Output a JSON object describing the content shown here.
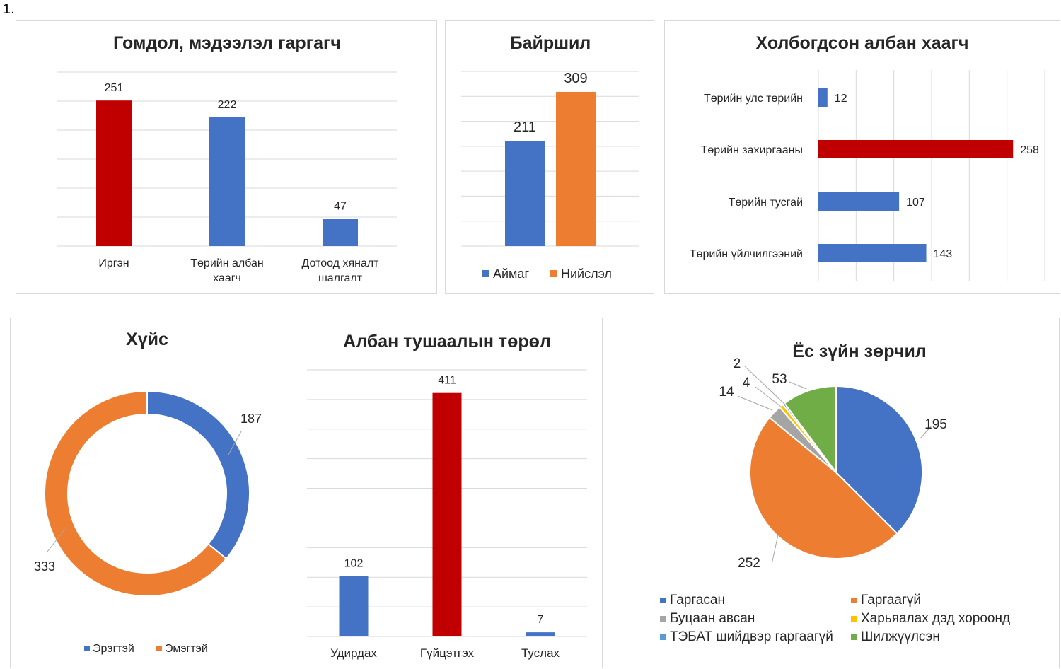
{
  "figure_number": "1.",
  "colors": {
    "blue": "#4472c4",
    "orange": "#ed7d31",
    "red": "#c00000",
    "gray": "#a5a5a5",
    "yellow": "#ffc000",
    "lightblue": "#5b9bd5",
    "green": "#70ad47",
    "grid": "#d9d9d9",
    "text": "#262626"
  },
  "chart_data": [
    {
      "id": "complainant",
      "type": "bar",
      "title": "Гомдол, мэдээлэл гаргагч",
      "categories": [
        [
          "Иргэн"
        ],
        [
          "Төрийн албан",
          "хаагч"
        ],
        [
          "Дотоод хяналт",
          "шалгалт"
        ]
      ],
      "values": [
        251,
        222,
        47
      ],
      "bar_colors": [
        "red",
        "blue",
        "blue"
      ],
      "ylim": [
        0,
        300
      ],
      "grid": true
    },
    {
      "id": "location",
      "type": "bar",
      "title": "Байршил",
      "series": [
        {
          "name": "Аймаг",
          "values": [
            211
          ],
          "color": "blue"
        },
        {
          "name": "Нийслэл",
          "values": [
            309
          ],
          "color": "orange"
        }
      ],
      "ylim": [
        0,
        350
      ],
      "grid": true,
      "legend": "bottom"
    },
    {
      "id": "officer",
      "type": "barh",
      "title": "Холбогдсон албан хаагч",
      "categories": [
        "Төрийн улс төрийн",
        "Төрийн захиргааны",
        "Төрийн тусгай",
        "Төрийн үйлчилгээний"
      ],
      "values": [
        12,
        258,
        107,
        143
      ],
      "bar_colors": [
        "blue",
        "red",
        "blue",
        "blue"
      ],
      "xlim": [
        0,
        300
      ],
      "grid": true
    },
    {
      "id": "gender",
      "type": "donut",
      "title": "Хүйс",
      "labels": [
        "Эрэгтэй",
        "Эмэгтэй"
      ],
      "values": [
        187,
        333
      ],
      "slice_colors": [
        "blue",
        "orange"
      ],
      "legend": "bottom"
    },
    {
      "id": "position",
      "type": "bar",
      "title": "Албан тушаалын төрөл",
      "categories": [
        [
          "Удирдах"
        ],
        [
          "Гүйцэтгэх"
        ],
        [
          "Туслах"
        ]
      ],
      "values": [
        102,
        411,
        7
      ],
      "bar_colors": [
        "blue",
        "red",
        "blue"
      ],
      "ylim": [
        0,
        450
      ],
      "grid": true
    },
    {
      "id": "ethics",
      "type": "pie",
      "title": "Ёс зүйн зөрчил",
      "labels": [
        "Гаргасан",
        "Гаргаагүй",
        "Буцаан авсан",
        "Харьяалах дэд хороонд",
        "ТЭБАТ шийдвэр гаргаагүй",
        "Шилжүүлсэн"
      ],
      "values": [
        195,
        252,
        14,
        4,
        2,
        53
      ],
      "slice_colors": [
        "blue",
        "orange",
        "gray",
        "yellow",
        "lightblue",
        "green"
      ],
      "legend": "bottom"
    }
  ]
}
